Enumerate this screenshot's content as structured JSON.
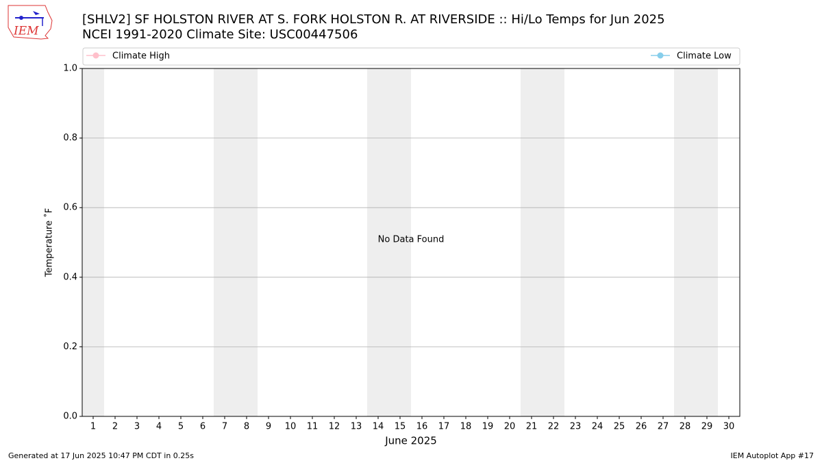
{
  "logo": {
    "text": "IEM"
  },
  "chart_data": {
    "type": "line",
    "title": "[SHLV2] SF HOLSTON RIVER  AT S. FORK HOLSTON R. AT RIVERSIDE :: Hi/Lo Temps for Jun 2025",
    "subtitle": "NCEI 1991-2020 Climate Site: USC00447506",
    "x_label": "June 2025",
    "y_label": "Temperature ˚F",
    "annotation": "No Data Found",
    "x": [],
    "series": [
      {
        "name": "Climate High",
        "color": "#ffc0cb",
        "values": []
      },
      {
        "name": "Climate Low",
        "color": "#87ceeb",
        "values": []
      }
    ],
    "xlim": [
      0.5,
      30.5
    ],
    "xticks": [
      1,
      2,
      3,
      4,
      5,
      6,
      7,
      8,
      9,
      10,
      11,
      12,
      13,
      14,
      15,
      16,
      17,
      18,
      19,
      20,
      21,
      22,
      23,
      24,
      25,
      26,
      27,
      28,
      29,
      30
    ],
    "shaded_days": [
      1,
      7,
      8,
      14,
      15,
      21,
      22,
      28,
      29
    ],
    "shade_color": "#eeeeee",
    "ylim": [
      0,
      1
    ],
    "yticks": [
      {
        "value": 0,
        "label": "0.0"
      },
      0.2,
      0.4,
      0.6,
      0.8,
      {
        "value": 1,
        "label": "1.0"
      }
    ],
    "grid": true
  },
  "footer": {
    "left": "Generated at 17 Jun 2025 10:47 PM CDT in 0.25s",
    "right": "IEM Autoplot App #17"
  }
}
